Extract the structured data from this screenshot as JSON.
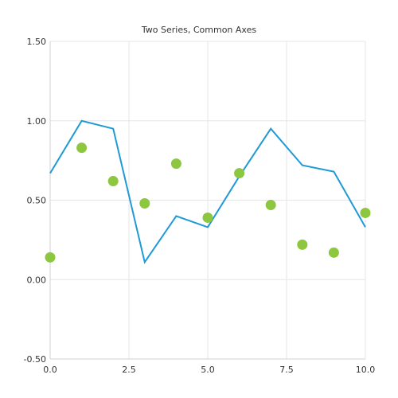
{
  "chart_data": {
    "type": "line",
    "title": "Two Series, Common Axes",
    "xlabel": "",
    "ylabel": "",
    "xlim": [
      0,
      10
    ],
    "ylim": [
      -0.5,
      1.5
    ],
    "x_ticks": [
      0.0,
      2.5,
      5.0,
      7.5,
      10.0
    ],
    "x_tick_labels": [
      "0.0",
      "2.5",
      "5.0",
      "7.5",
      "10.0"
    ],
    "y_ticks": [
      -0.5,
      0.0,
      0.5,
      1.0,
      1.5
    ],
    "y_tick_labels": [
      "-0.50",
      "0.00",
      "0.50",
      "1.00",
      "1.50"
    ],
    "grid": true,
    "series": [
      {
        "kind": "line",
        "color": "#1f9ad6",
        "x": [
          0,
          1,
          2,
          3,
          4,
          5,
          6,
          7,
          8,
          9,
          10
        ],
        "y": [
          0.67,
          1.0,
          0.95,
          0.11,
          0.4,
          0.33,
          0.65,
          0.95,
          0.72,
          0.68,
          0.33
        ]
      },
      {
        "kind": "scatter",
        "color": "#8dc63f",
        "x": [
          0,
          1,
          2,
          3,
          4,
          5,
          6,
          7,
          8,
          9,
          10
        ],
        "y": [
          0.14,
          0.83,
          0.62,
          0.48,
          0.73,
          0.39,
          0.67,
          0.47,
          0.22,
          0.17,
          0.42
        ]
      }
    ]
  }
}
